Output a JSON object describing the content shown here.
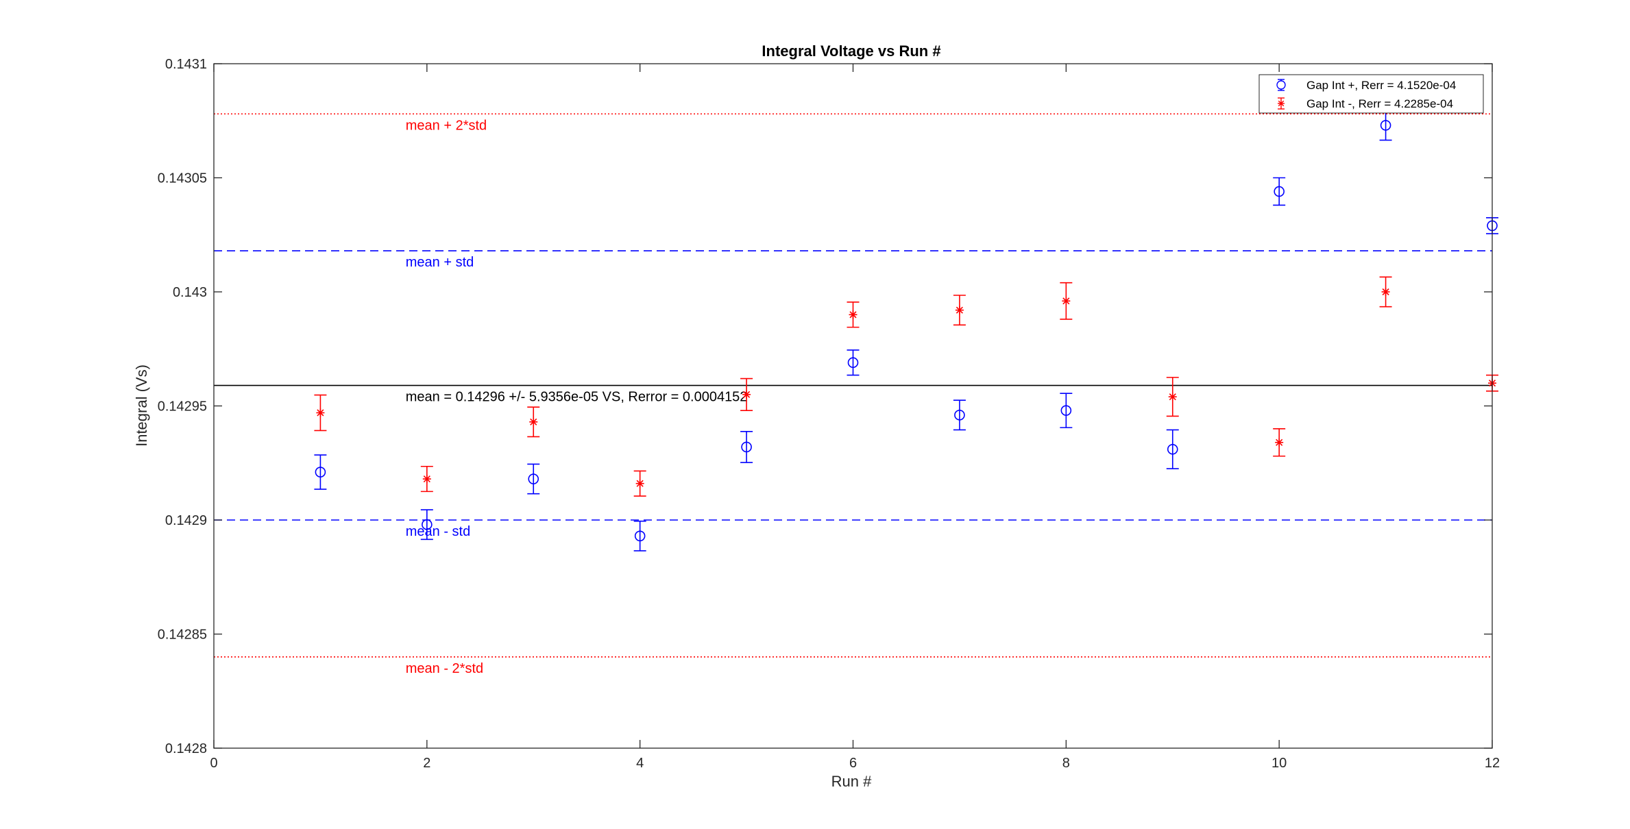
{
  "chart_data": {
    "type": "scatter",
    "title": "Integral Voltage vs Run #",
    "xlabel": "Run #",
    "ylabel": "Integral (Vs)",
    "xlim": [
      0,
      12
    ],
    "ylim": [
      0.1428,
      0.1431
    ],
    "xticks": [
      0,
      2,
      4,
      6,
      8,
      10,
      12
    ],
    "xtick_labels": [
      "0",
      "2",
      "4",
      "6",
      "8",
      "10",
      "12"
    ],
    "yticks": [
      0.1428,
      0.14285,
      0.1429,
      0.14295,
      0.143,
      0.14305,
      0.1431
    ],
    "ytick_labels": [
      "0.1428",
      "0.14285",
      "0.1429",
      "0.14295",
      "0.143",
      "0.14305",
      "0.1431"
    ],
    "grid": false,
    "legend_position": "top-right",
    "series": [
      {
        "name": "Gap Int +, Rerr = 4.1520e-04",
        "color": "#0000ff",
        "marker": "circle",
        "x": [
          1,
          2,
          3,
          4,
          5,
          6,
          7,
          8,
          9,
          10,
          11,
          12
        ],
        "y": [
          0.142921,
          0.142898,
          0.142918,
          0.142893,
          0.142932,
          0.142969,
          0.142946,
          0.142948,
          0.142931,
          0.143044,
          0.143073,
          0.143029
        ],
        "err": [
          7.5e-06,
          6.5e-06,
          6.5e-06,
          6.5e-06,
          6.8e-06,
          5.5e-06,
          6.5e-06,
          7.5e-06,
          8.5e-06,
          6e-06,
          6.5e-06,
          3.5e-06
        ]
      },
      {
        "name": "Gap Int -, Rerr = 4.2285e-04",
        "color": "#ff0000",
        "marker": "asterisk",
        "x": [
          1,
          2,
          3,
          4,
          5,
          6,
          7,
          8,
          9,
          10,
          11,
          12
        ],
        "y": [
          0.142947,
          0.142918,
          0.142943,
          0.142916,
          0.142955,
          0.14299,
          0.142992,
          0.142996,
          0.142954,
          0.142934,
          0.143,
          0.14296
        ],
        "err": [
          7.8e-06,
          5.5e-06,
          6.5e-06,
          5.5e-06,
          7e-06,
          5.5e-06,
          6.5e-06,
          8e-06,
          8.5e-06,
          6e-06,
          6.5e-06,
          3.5e-06
        ]
      }
    ],
    "reference_lines": [
      {
        "value": 0.143078,
        "label": "mean + 2*std",
        "color": "#ff0000",
        "style": "dotted"
      },
      {
        "value": 0.143018,
        "label": "mean + std",
        "color": "#0000ff",
        "style": "dashed"
      },
      {
        "value": 0.142959,
        "label": "mean = 0.14296 +/- 5.9356e-05 VS, Rerror = 0.0004152",
        "color": "#000000",
        "style": "solid"
      },
      {
        "value": 0.1429,
        "label": "mean - std",
        "color": "#0000ff",
        "style": "dashed"
      },
      {
        "value": 0.14284,
        "label": "mean - 2*std",
        "color": "#ff0000",
        "style": "dotted"
      }
    ]
  }
}
